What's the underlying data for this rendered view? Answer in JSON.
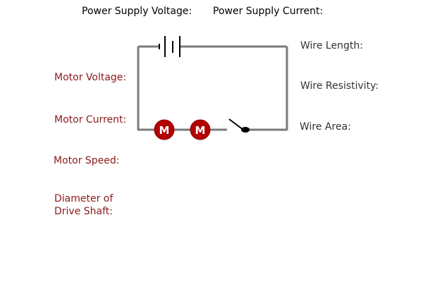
{
  "labels": {
    "power_supply_voltage": "Power Supply Voltage:",
    "power_supply_current": "Power Supply Current:",
    "wire_length": "Wire Length:",
    "wire_resistivity": "Wire Resistivity:",
    "wire_area": "Wire Area:",
    "motor_voltage": "Motor Voltage:",
    "motor_current": "Motor Current:",
    "motor_speed": "Motor Speed:",
    "shaft_diameter_line1": "Diameter of",
    "shaft_diameter_line2": "Drive Shaft:"
  },
  "circuit": {
    "motors": [
      {
        "symbol": "M"
      },
      {
        "symbol": "M"
      }
    ],
    "switch_state": "open"
  },
  "colors": {
    "wire": "#7a7a7a",
    "motor_fill": "#b30000",
    "motor_text": "#ffffff",
    "label_red": "#8b1a1a"
  }
}
